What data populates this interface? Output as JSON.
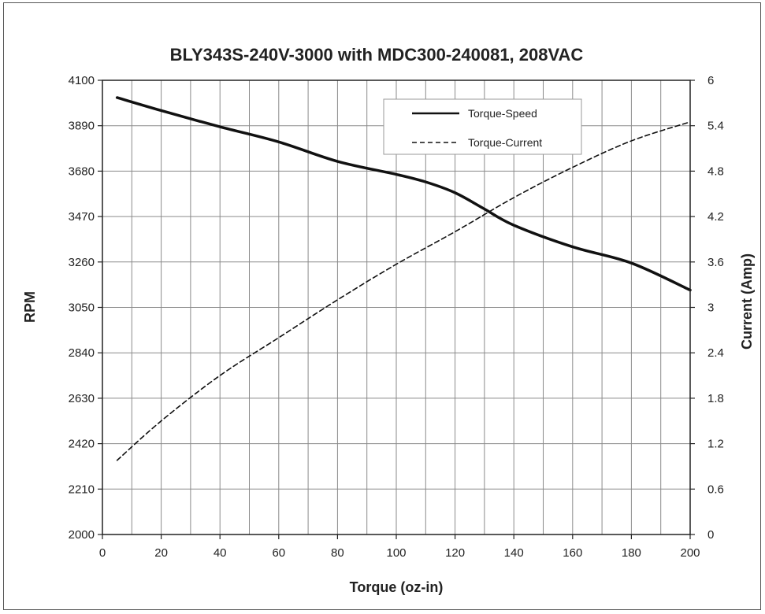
{
  "chart_data": {
    "type": "line",
    "title": "BLY343S-240V-3000 with  MDC300-240081, 208VAC",
    "xlabel": "Torque (oz-in)",
    "ylabel": "RPM",
    "y2label": "Current (Amp)",
    "xlim": [
      0,
      200
    ],
    "ylim": [
      2000,
      4100
    ],
    "y2lim": [
      0,
      6
    ],
    "x_ticks": [
      "0",
      "20",
      "40",
      "60",
      "80",
      "100",
      "120",
      "140",
      "160",
      "180",
      "200"
    ],
    "y_ticks": [
      "2000",
      "2210",
      "2420",
      "2630",
      "2840",
      "3050",
      "3260",
      "3470",
      "3680",
      "3890",
      "4100"
    ],
    "y2_ticks": [
      "0",
      "0.6",
      "1.2",
      "1.8",
      "2.4",
      "3",
      "3.6",
      "4.2",
      "4.8",
      "5.4",
      "6"
    ],
    "grid": true,
    "legend_position": "top-right",
    "series": [
      {
        "name": "Torque-Speed",
        "axis": "left",
        "style": "solid",
        "x": [
          5,
          20,
          40,
          60,
          80,
          100,
          110,
          120,
          130,
          140,
          160,
          180,
          200
        ],
        "y": [
          4020,
          3960,
          3885,
          3815,
          3725,
          3665,
          3630,
          3580,
          3505,
          3430,
          3330,
          3255,
          3130
        ]
      },
      {
        "name": "Torque-Current",
        "axis": "right",
        "style": "dashed",
        "x": [
          5,
          20,
          40,
          60,
          80,
          100,
          120,
          140,
          160,
          180,
          200
        ],
        "y": [
          0.98,
          1.5,
          2.1,
          2.6,
          3.1,
          3.57,
          4.0,
          4.45,
          4.85,
          5.2,
          5.45
        ]
      }
    ]
  }
}
